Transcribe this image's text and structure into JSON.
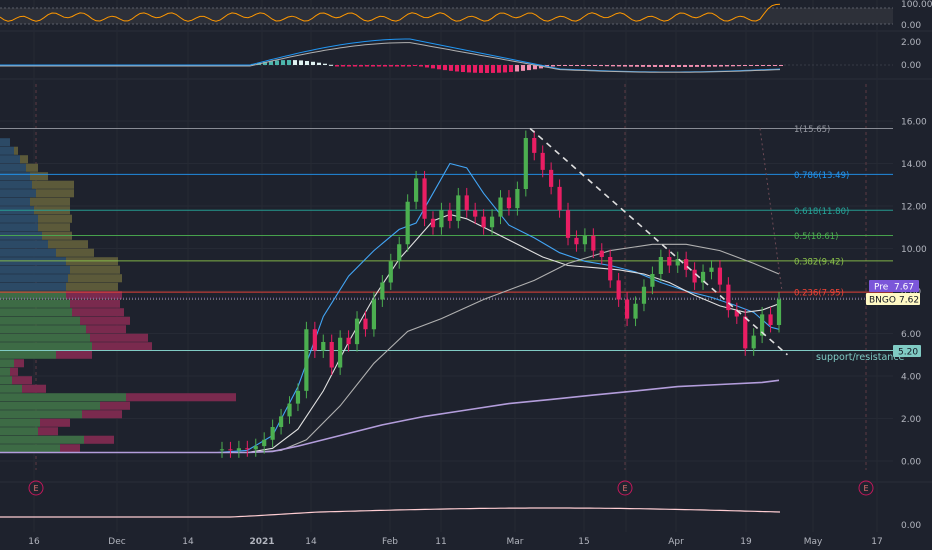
{
  "chart_data": {
    "type": "candlestick",
    "symbol": "BNGO",
    "last_price_label": "7.62",
    "pre_market_label": "Pre",
    "pre_market_price": "7.67",
    "x_tick_labels": [
      "16",
      "Dec",
      "14",
      "2021",
      "14",
      "Feb",
      "11",
      "Mar",
      "15",
      "Apr",
      "19",
      "May",
      "17"
    ],
    "y_ticks": [
      "16.00",
      "14.00",
      "12.00",
      "10.00",
      "8.00",
      "6.00",
      "4.00",
      "2.00",
      "0.00"
    ],
    "ylim": [
      0,
      17
    ],
    "rsi_panel": {
      "ticks": [
        "100.00",
        "0.00"
      ]
    },
    "macd_panel": {
      "ticks": [
        "2.00",
        "0.00"
      ]
    },
    "volume_panel": {
      "ticks": [
        "0.00"
      ]
    },
    "earnings_marker": "E",
    "fib_levels": [
      {
        "label": "1(15.65)",
        "value": 15.65,
        "color": "#9598a1"
      },
      {
        "label": "0.786(13.49)",
        "value": 13.49,
        "color": "#2196f3"
      },
      {
        "label": "0.618(11.80)",
        "value": 11.8,
        "color": "#26a69a"
      },
      {
        "label": "0.5(10.61)",
        "value": 10.61,
        "color": "#4caf50"
      },
      {
        "label": "0.382(9.42)",
        "value": 9.42,
        "color": "#8bc34a"
      },
      {
        "label": "0.236(7.95)",
        "value": 7.95,
        "color": "#f44336"
      }
    ],
    "support_line": {
      "label": "support/resistance",
      "value": 5.2,
      "value_label": "5.20",
      "color": "#80cbc4"
    },
    "moving_averages": [
      {
        "color": "#42a5f5",
        "points": [
          [
            0.4,
            0.4
          ],
          [
            4,
            0.5
          ],
          [
            7,
            1.2
          ],
          [
            10,
            3.5
          ],
          [
            13,
            6.8
          ],
          [
            16,
            8.7
          ],
          [
            19,
            9.9
          ],
          [
            22,
            10.9
          ],
          [
            24,
            11.2
          ],
          [
            26,
            12.6
          ],
          [
            28,
            14.0
          ],
          [
            30,
            13.8
          ],
          [
            32,
            12.6
          ],
          [
            35,
            11.1
          ],
          [
            38,
            10.5
          ],
          [
            41,
            9.8
          ],
          [
            44,
            9.4
          ],
          [
            47,
            9.2
          ],
          [
            50,
            8.9
          ],
          [
            53,
            8.4
          ],
          [
            56,
            8.0
          ],
          [
            59,
            7.7
          ],
          [
            62,
            7.3
          ],
          [
            64,
            7.0
          ],
          [
            66,
            6.3
          ],
          [
            67,
            6.2
          ]
        ]
      },
      {
        "color": "#e0e0e0",
        "points": [
          [
            0.4,
            0.4
          ],
          [
            4,
            0.4
          ],
          [
            7,
            0.6
          ],
          [
            10,
            1.5
          ],
          [
            13,
            3.3
          ],
          [
            16,
            5.6
          ],
          [
            19,
            7.7
          ],
          [
            22,
            9.5
          ],
          [
            24,
            10.4
          ],
          [
            26,
            11.3
          ],
          [
            28,
            11.6
          ],
          [
            30,
            11.4
          ],
          [
            33,
            10.8
          ],
          [
            36,
            10.2
          ],
          [
            39,
            9.6
          ],
          [
            42,
            9.2
          ],
          [
            45,
            9.1
          ],
          [
            48,
            9.0
          ],
          [
            51,
            8.8
          ],
          [
            54,
            8.4
          ],
          [
            57,
            7.8
          ],
          [
            60,
            7.3
          ],
          [
            63,
            7.0
          ],
          [
            65,
            7.1
          ],
          [
            67,
            7.4
          ]
        ]
      },
      {
        "color": "#b0b0b0",
        "points": [
          [
            0.4,
            0.4
          ],
          [
            4,
            0.4
          ],
          [
            8,
            0.5
          ],
          [
            11,
            1.0
          ],
          [
            15,
            2.6
          ],
          [
            19,
            4.6
          ],
          [
            23,
            6.1
          ],
          [
            27,
            6.7
          ],
          [
            32,
            7.6
          ],
          [
            38,
            8.5
          ],
          [
            42,
            9.3
          ],
          [
            47,
            9.9
          ],
          [
            52,
            10.2
          ],
          [
            56,
            10.2
          ],
          [
            60,
            9.9
          ],
          [
            64,
            9.3
          ],
          [
            67,
            8.8
          ]
        ]
      },
      {
        "color": "#b39ddb",
        "points": [
          [
            0.4,
            0.4
          ],
          [
            4,
            0.4
          ],
          [
            7,
            0.45
          ],
          [
            10,
            0.7
          ],
          [
            15,
            1.2
          ],
          [
            20,
            1.7
          ],
          [
            25,
            2.1
          ],
          [
            30,
            2.4
          ],
          [
            35,
            2.7
          ],
          [
            40,
            2.9
          ],
          [
            45,
            3.1
          ],
          [
            50,
            3.3
          ],
          [
            55,
            3.5
          ],
          [
            60,
            3.6
          ],
          [
            65,
            3.7
          ],
          [
            67,
            3.8
          ]
        ]
      }
    ],
    "candles": [
      [
        1,
        0.5,
        0.55
      ],
      [
        2,
        0.55,
        0.5
      ],
      [
        3,
        0.5,
        0.6
      ],
      [
        4,
        0.6,
        0.55
      ],
      [
        5,
        0.55,
        0.7
      ],
      [
        6,
        0.7,
        1.0
      ],
      [
        7,
        1.0,
        1.6
      ],
      [
        8,
        1.6,
        2.1
      ],
      [
        9,
        2.1,
        2.7
      ],
      [
        10,
        2.7,
        3.3
      ],
      [
        11,
        3.3,
        6.2
      ],
      [
        12,
        6.2,
        5.2
      ],
      [
        13,
        5.2,
        5.6
      ],
      [
        14,
        5.6,
        4.4
      ],
      [
        15,
        4.4,
        5.8
      ],
      [
        16,
        5.8,
        5.5
      ],
      [
        17,
        5.5,
        6.7
      ],
      [
        18,
        6.7,
        6.2
      ],
      [
        19,
        6.2,
        7.6
      ],
      [
        20,
        7.6,
        8.4
      ],
      [
        21,
        8.4,
        9.4
      ],
      [
        22,
        9.4,
        10.2
      ],
      [
        23,
        10.2,
        12.2
      ],
      [
        24,
        12.2,
        13.3
      ],
      [
        25,
        13.3,
        11.4
      ],
      [
        26,
        11.4,
        11.0
      ],
      [
        27,
        11.0,
        11.8
      ],
      [
        28,
        11.8,
        11.3
      ],
      [
        29,
        11.3,
        12.5
      ],
      [
        30,
        12.5,
        11.8
      ],
      [
        31,
        11.8,
        11.5
      ],
      [
        32,
        11.5,
        11.0
      ],
      [
        33,
        11.0,
        11.5
      ],
      [
        34,
        11.5,
        12.4
      ],
      [
        35,
        12.4,
        11.9
      ],
      [
        36,
        11.9,
        12.8
      ],
      [
        37,
        12.8,
        15.2
      ],
      [
        38,
        15.2,
        14.5
      ],
      [
        39,
        14.5,
        13.7
      ],
      [
        40,
        13.7,
        12.9
      ],
      [
        41,
        12.9,
        11.8
      ],
      [
        42,
        11.8,
        10.5
      ],
      [
        43,
        10.5,
        10.2
      ],
      [
        44,
        10.2,
        10.6
      ],
      [
        45,
        10.6,
        9.9
      ],
      [
        46,
        9.9,
        9.6
      ],
      [
        47,
        9.6,
        8.5
      ],
      [
        48,
        8.5,
        7.6
      ],
      [
        49,
        7.6,
        6.7
      ],
      [
        50,
        6.7,
        7.4
      ],
      [
        51,
        7.4,
        8.2
      ],
      [
        52,
        8.2,
        8.8
      ],
      [
        53,
        8.8,
        9.6
      ],
      [
        54,
        9.6,
        9.2
      ],
      [
        55,
        9.2,
        9.5
      ],
      [
        56,
        9.5,
        9.0
      ],
      [
        57,
        9.0,
        8.4
      ],
      [
        58,
        8.4,
        8.9
      ],
      [
        59,
        8.9,
        9.1
      ],
      [
        60,
        9.1,
        8.3
      ],
      [
        61,
        8.3,
        7.1
      ],
      [
        62,
        7.1,
        6.8
      ],
      [
        63,
        6.8,
        5.3
      ],
      [
        64,
        5.3,
        5.9
      ],
      [
        65,
        5.9,
        6.9
      ],
      [
        66,
        6.9,
        6.4
      ],
      [
        67,
        6.4,
        7.6
      ]
    ]
  }
}
